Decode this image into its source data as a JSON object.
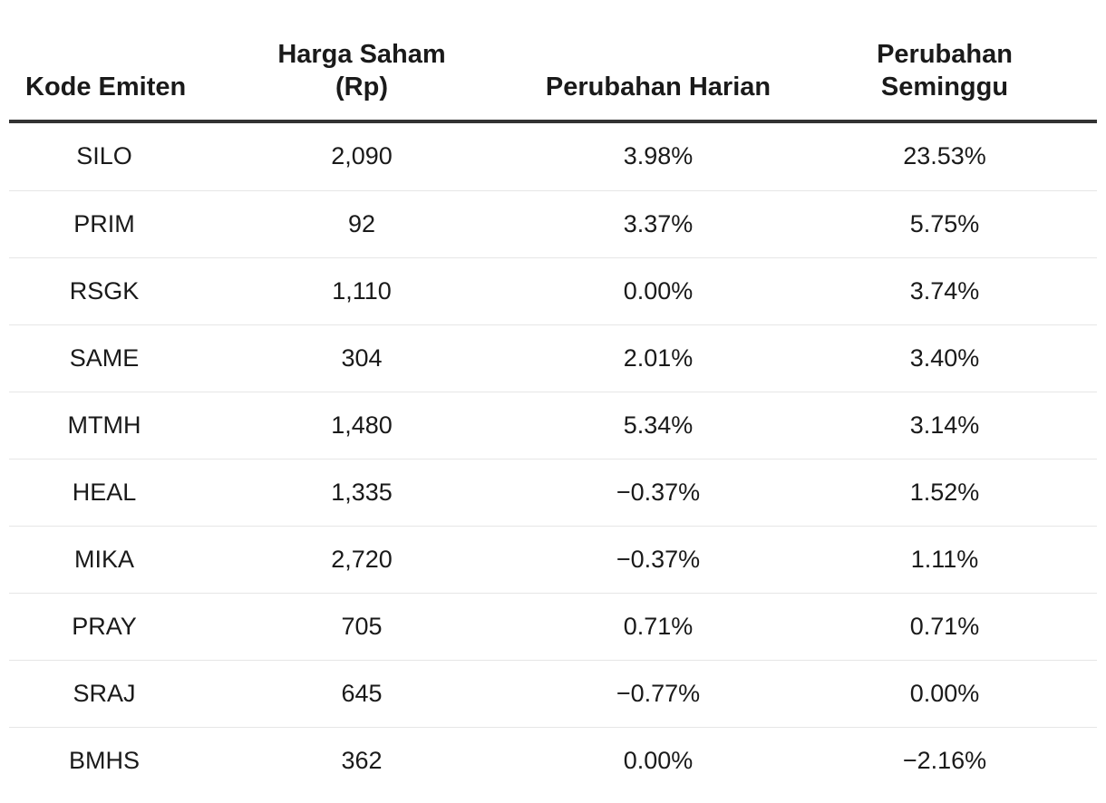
{
  "table": {
    "headers": {
      "code": "Kode Emiten",
      "price_line1": "Harga Saham",
      "price_line2": "(Rp)",
      "daily": "Perubahan Harian",
      "weekly_line1": "Perubahan",
      "weekly_line2": "Seminggu"
    },
    "rows": [
      {
        "code": "SILO",
        "price": "2,090",
        "daily": "3.98%",
        "weekly": "23.53%"
      },
      {
        "code": "PRIM",
        "price": "92",
        "daily": "3.37%",
        "weekly": "5.75%"
      },
      {
        "code": "RSGK",
        "price": "1,110",
        "daily": "0.00%",
        "weekly": "3.74%"
      },
      {
        "code": "SAME",
        "price": "304",
        "daily": "2.01%",
        "weekly": "3.40%"
      },
      {
        "code": "MTMH",
        "price": "1,480",
        "daily": "5.34%",
        "weekly": "3.14%"
      },
      {
        "code": "HEAL",
        "price": "1,335",
        "daily": "−0.37%",
        "weekly": "1.52%"
      },
      {
        "code": "MIKA",
        "price": "2,720",
        "daily": "−0.37%",
        "weekly": "1.11%"
      },
      {
        "code": "PRAY",
        "price": "705",
        "daily": "0.71%",
        "weekly": "0.71%"
      },
      {
        "code": "SRAJ",
        "price": "645",
        "daily": "−0.77%",
        "weekly": "0.00%"
      },
      {
        "code": "BMHS",
        "price": "362",
        "daily": "0.00%",
        "weekly": "−2.16%"
      }
    ]
  }
}
